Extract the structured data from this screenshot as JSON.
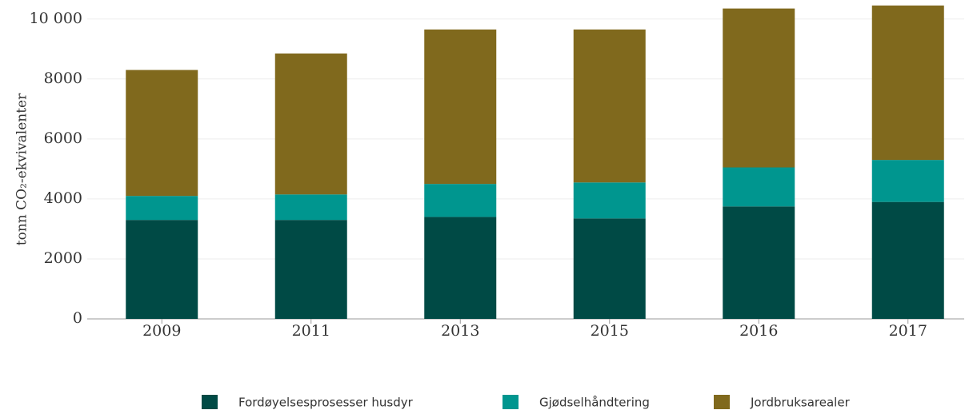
{
  "chart_data": {
    "type": "stacked_bar",
    "y_label": "tonn CO₂-ekvivalenter",
    "categories": [
      "2009",
      "2011",
      "2013",
      "2015",
      "2016",
      "2017"
    ],
    "series": [
      {
        "name": "Fordøyelsesprosesser husdyr",
        "color": "#004a45",
        "values": [
          3300,
          3300,
          3400,
          3350,
          3750,
          3900
        ]
      },
      {
        "name": "Gjødselhåndtering",
        "color": "#00968f",
        "values": [
          800,
          850,
          1100,
          1200,
          1300,
          1400
        ]
      },
      {
        "name": "Jordbruksarealer",
        "color": "#80691d",
        "values": [
          4200,
          4700,
          5150,
          5100,
          5300,
          5150
        ]
      }
    ],
    "ylim": [
      0,
      10500
    ],
    "yticks": [
      0,
      2000,
      4000,
      6000,
      8000,
      {
        "value": 10000,
        "label": "10 000"
      }
    ],
    "grid": true,
    "legend": "bottom"
  }
}
